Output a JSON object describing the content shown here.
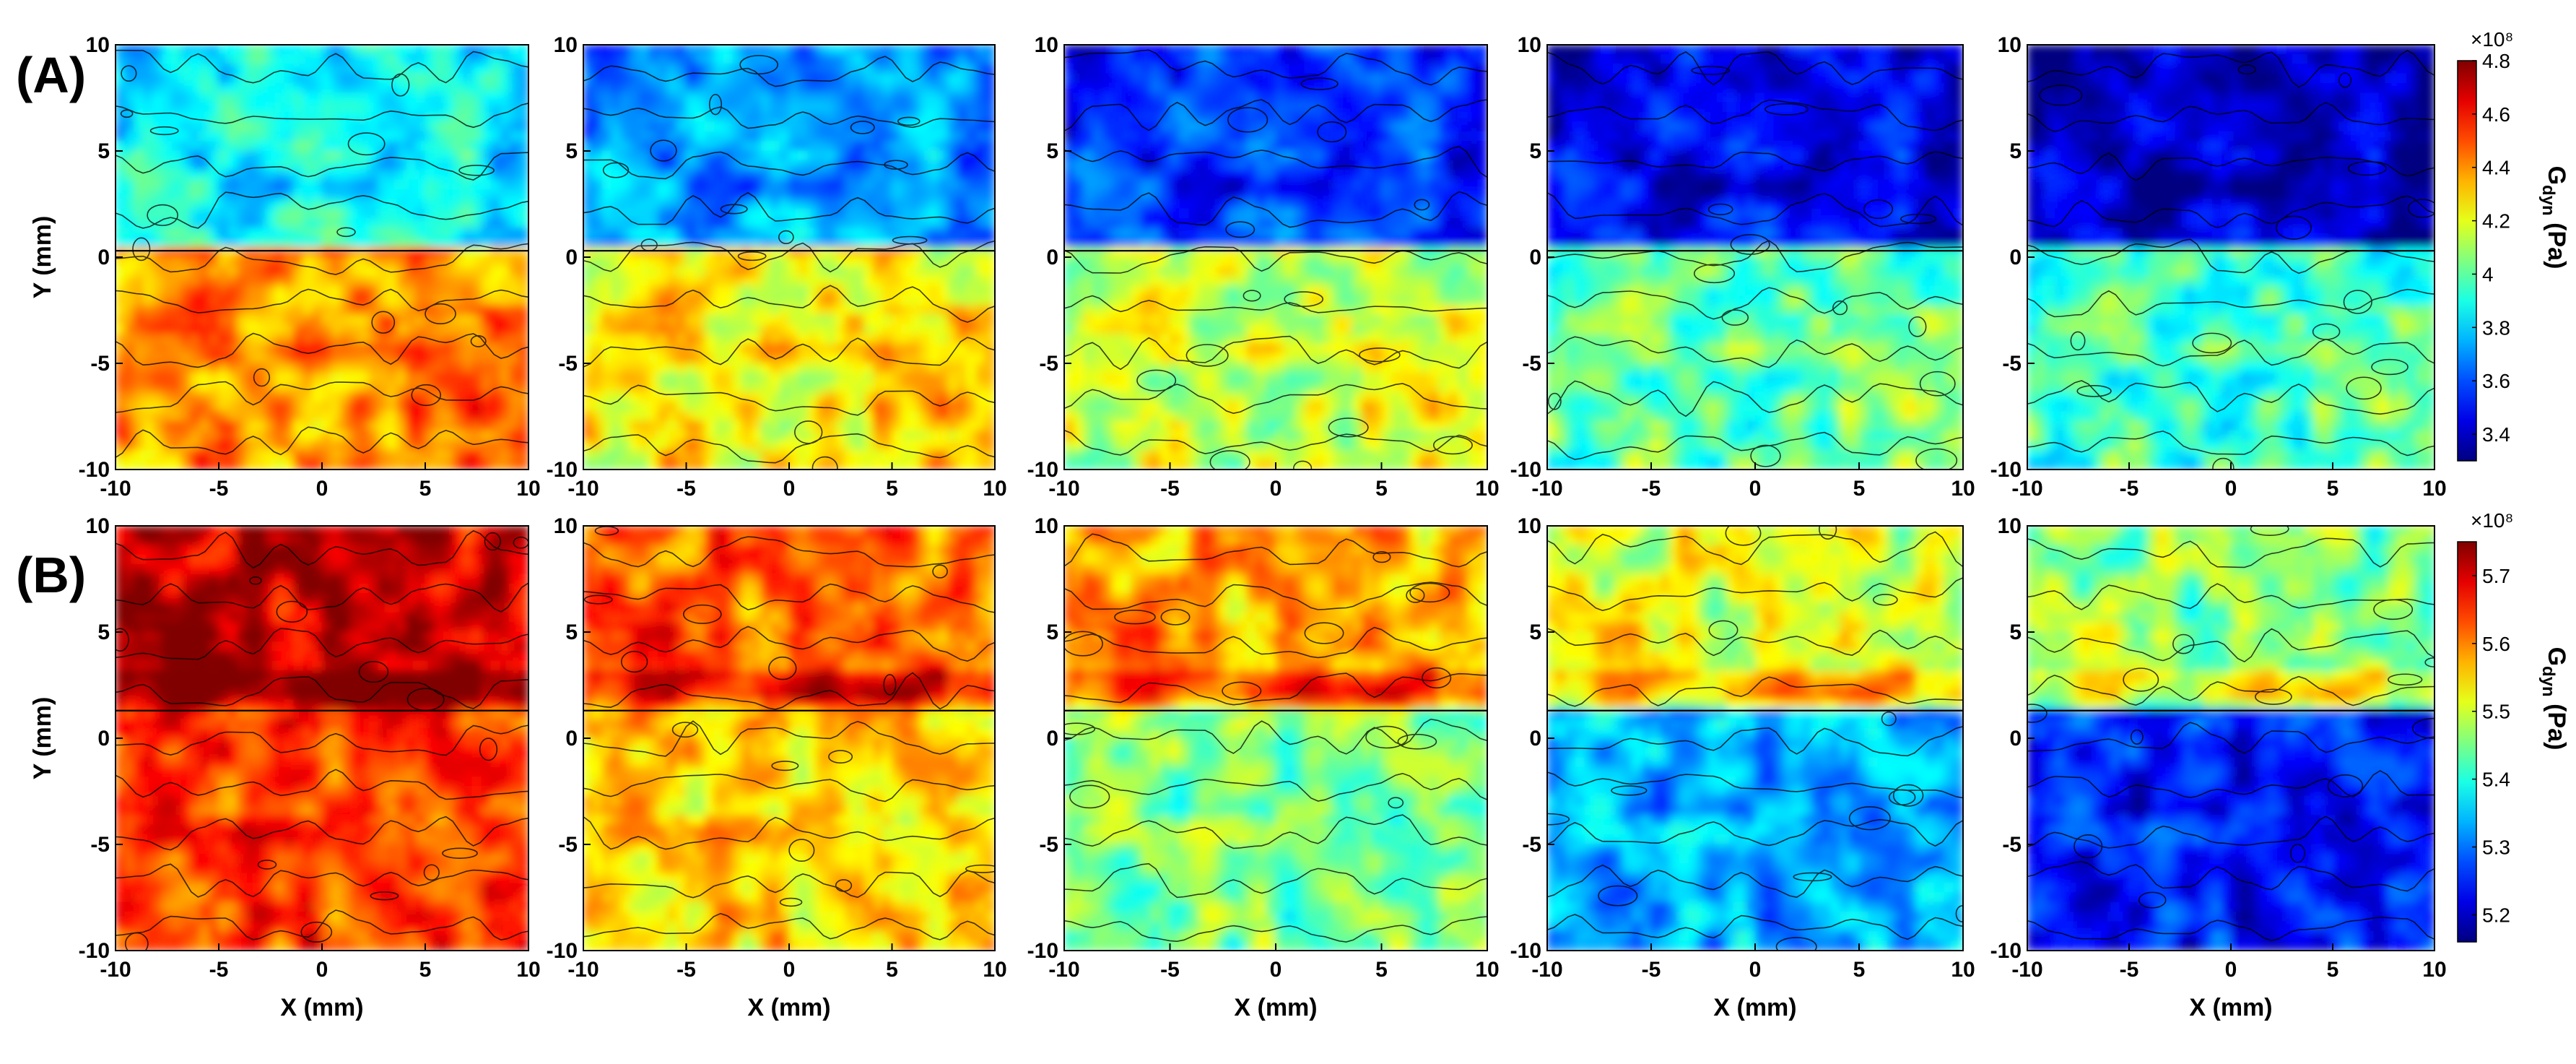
{
  "chart_data": {
    "type": "heatmap",
    "description_fields": {
      "panel_count_per_row": 5,
      "xlim": [
        -10,
        10
      ],
      "ylim": [
        -10,
        10
      ],
      "xticks": [
        -10,
        -5,
        0,
        5,
        10
      ],
      "yticks": [
        -10,
        -5,
        0,
        5,
        10
      ],
      "grid": false,
      "colormap": "jet",
      "contour_lines": true,
      "legend_placement": "right (colorbar)"
    },
    "rows": [
      {
        "label": "(A)",
        "ylabel": "Y (mm)",
        "xlabel": "",
        "colorbar": {
          "scale_label": "×10⁸",
          "title": "G_dyn (Pa)",
          "title_main": "G",
          "title_sub": "dyn",
          "title_unit": " (Pa)",
          "min": 3.3,
          "max": 4.8,
          "ticks": [
            3.4,
            3.6,
            3.8,
            4,
            4.2,
            4.4,
            4.6,
            4.8
          ]
        },
        "interface_y": 0.3,
        "panels": [
          {
            "top_mean": 3.85,
            "bottom_mean": 4.4,
            "interface_y": 0.3
          },
          {
            "top_mean": 3.7,
            "bottom_mean": 4.25,
            "interface_y": 0.3
          },
          {
            "top_mean": 3.55,
            "bottom_mean": 4.15,
            "interface_y": 0.3
          },
          {
            "top_mean": 3.45,
            "bottom_mean": 4.0,
            "interface_y": 0.3
          },
          {
            "top_mean": 3.38,
            "bottom_mean": 3.95,
            "interface_y": 0.3
          }
        ]
      },
      {
        "label": "(B)",
        "ylabel": "Y (mm)",
        "xlabel": "X (mm)",
        "colorbar": {
          "scale_label": "×10⁸",
          "title": "G_dyn (Pa)",
          "title_main": "G",
          "title_sub": "dyn",
          "title_unit": " (Pa)",
          "min": 5.16,
          "max": 5.75,
          "ticks": [
            5.2,
            5.3,
            5.4,
            5.5,
            5.6,
            5.7
          ]
        },
        "interface_y": 1.3,
        "panels": [
          {
            "top_mean": 5.71,
            "bottom_mean": 5.64,
            "interface_y": 1.3
          },
          {
            "top_mean": 5.62,
            "bottom_mean": 5.55,
            "interface_y": 1.3
          },
          {
            "top_mean": 5.58,
            "bottom_mean": 5.45,
            "interface_y": 1.3
          },
          {
            "top_mean": 5.51,
            "bottom_mean": 5.33,
            "interface_y": 1.3
          },
          {
            "top_mean": 5.46,
            "bottom_mean": 5.24,
            "interface_y": 1.3
          }
        ]
      }
    ]
  }
}
